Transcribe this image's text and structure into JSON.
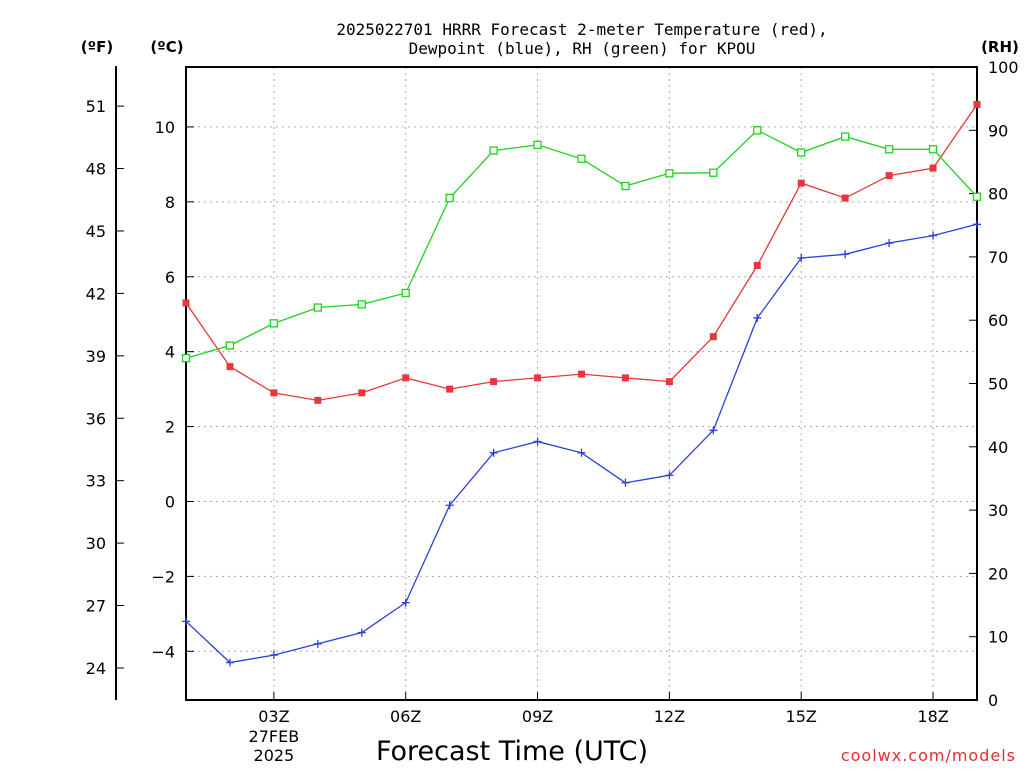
{
  "chart_data": {
    "type": "line",
    "title_line1": "2025022701 HRRR Forecast 2-meter Temperature (red),",
    "title_line2": "Dewpoint (blue), RH (green) for KPOU",
    "xlabel": "Forecast Time (UTC)",
    "unit_labels": {
      "fahrenheit": "(ºF)",
      "celsius": "(ºC)",
      "rh": "(RH)"
    },
    "watermark": "coolwx.com/models",
    "x": [
      1,
      2,
      3,
      4,
      5,
      6,
      7,
      8,
      9,
      10,
      11,
      12,
      13,
      14,
      15,
      16,
      17,
      18,
      19
    ],
    "xlim": [
      1,
      19
    ],
    "x_ticks": [
      {
        "x": 3,
        "label": "03Z",
        "sub1": "27FEB",
        "sub2": "2025"
      },
      {
        "x": 6,
        "label": "06Z"
      },
      {
        "x": 9,
        "label": "09Z"
      },
      {
        "x": 12,
        "label": "12Z"
      },
      {
        "x": 15,
        "label": "15Z"
      },
      {
        "x": 18,
        "label": "18Z"
      }
    ],
    "ylim_celsius": [
      -5.3,
      11.6
    ],
    "y_ticks_celsius": [
      -4,
      -2,
      0,
      2,
      4,
      6,
      8,
      10
    ],
    "y_ticks_fahrenheit": [
      24,
      27,
      30,
      33,
      36,
      39,
      42,
      45,
      48,
      51
    ],
    "ylim_rh": [
      0,
      100
    ],
    "y_ticks_rh": [
      0,
      10,
      20,
      30,
      40,
      50,
      60,
      70,
      80,
      90,
      100
    ],
    "grid": true,
    "series": [
      {
        "name": "Temperature",
        "color": "#e8373a",
        "marker": "filled-square",
        "axis": "celsius",
        "values": [
          5.3,
          3.6,
          2.9,
          2.7,
          2.9,
          3.3,
          3.0,
          3.2,
          3.3,
          3.4,
          3.3,
          3.2,
          4.4,
          6.3,
          8.5,
          8.1,
          8.7,
          8.9,
          10.6
        ]
      },
      {
        "name": "Dewpoint",
        "color": "#2a3fe0",
        "marker": "plus",
        "axis": "celsius",
        "values": [
          -3.2,
          -4.3,
          -4.1,
          -3.8,
          -3.5,
          -2.7,
          -0.1,
          1.3,
          1.6,
          1.3,
          0.5,
          0.7,
          1.9,
          4.9,
          6.5,
          6.6,
          6.9,
          7.1,
          7.4
        ]
      },
      {
        "name": "RH",
        "color": "#1ed21e",
        "marker": "open-square",
        "axis": "rh",
        "values": [
          54,
          56,
          59.5,
          62,
          62.5,
          64.3,
          79.3,
          86.8,
          87.7,
          85.5,
          81.2,
          83.2,
          83.3,
          90,
          86.5,
          89,
          87,
          87,
          79.5
        ]
      }
    ]
  }
}
